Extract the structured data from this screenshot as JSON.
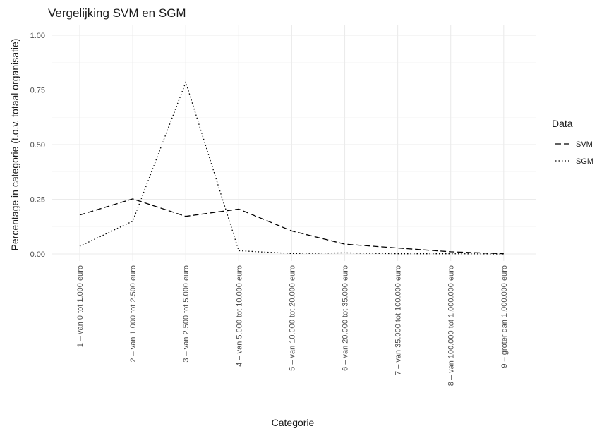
{
  "chart_data": {
    "type": "line",
    "title": "Vergelijking SVM en SGM",
    "xlabel": "Categorie",
    "ylabel": "Percentage in categorie (t.o.v. totaal organisatie)",
    "categories": [
      "1 – van 0 tot 1.000 euro",
      "2 – van 1.000 tot 2.500 euro",
      "3 – van 2.500 tot 5.000 euro",
      "4 – van 5.000 tot 10.000 euro",
      "5 – van 10.000 tot 20.000 euro",
      "6 – van 20.000 tot 35.000 euro",
      "7 – van 35.000 tot 100.000 euro",
      "8 – van 100.000 tot 1.000.000 euro",
      "9 – groter dan 1.000.000 euro"
    ],
    "ylim": [
      0,
      1
    ],
    "yticks": [
      "0.00",
      "0.25",
      "0.50",
      "0.75",
      "1.00"
    ],
    "grid": true,
    "legend": {
      "title": "Data",
      "position": "right"
    },
    "series": [
      {
        "name": "SVM",
        "linetype": "dashed",
        "color": "#000000",
        "values": [
          0.178,
          0.252,
          0.172,
          0.205,
          0.105,
          0.045,
          0.027,
          0.01,
          0.001
        ]
      },
      {
        "name": "SGM",
        "linetype": "dotted",
        "color": "#000000",
        "values": [
          0.035,
          0.15,
          0.785,
          0.015,
          0.002,
          0.005,
          0.001,
          0.001,
          0.0
        ]
      }
    ]
  }
}
